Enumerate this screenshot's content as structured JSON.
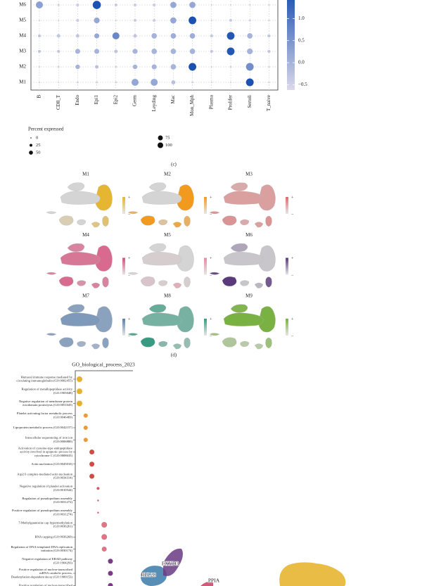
{
  "dotplot": {
    "rows": [
      "M6",
      "M5",
      "M4",
      "M3",
      "M2",
      "M1"
    ],
    "columns": [
      "B",
      "CD8_T",
      "Endo",
      "Epi1",
      "Epi2",
      "Germ",
      "Leyding",
      "Mac",
      "Mon_Mph",
      "Plasma",
      "Prolifer",
      "Sertoli",
      "T_naive"
    ],
    "percent": [
      [
        60,
        5,
        10,
        80,
        8,
        10,
        10,
        45,
        45,
        3,
        3,
        3,
        3
      ],
      [
        3,
        3,
        10,
        40,
        3,
        10,
        10,
        45,
        70,
        3,
        10,
        5,
        3
      ],
      [
        10,
        15,
        15,
        30,
        60,
        15,
        35,
        35,
        35,
        10,
        70,
        35,
        10
      ],
      [
        10,
        10,
        30,
        30,
        15,
        30,
        35,
        35,
        35,
        10,
        70,
        40,
        10
      ],
      [
        3,
        5,
        25,
        15,
        5,
        25,
        30,
        35,
        70,
        3,
        5,
        70,
        3
      ],
      [
        3,
        3,
        5,
        5,
        5,
        60,
        60,
        20,
        5,
        3,
        3,
        70,
        3
      ]
    ],
    "average": [
      [
        0.3,
        -0.4,
        -0.4,
        1.6,
        -0.3,
        -0.4,
        -0.4,
        0.2,
        0.2,
        -0.5,
        -0.5,
        -0.5,
        -0.5
      ],
      [
        -0.5,
        -0.5,
        -0.4,
        0.2,
        -0.5,
        -0.4,
        -0.4,
        0.2,
        1.6,
        -0.5,
        -0.4,
        -0.5,
        -0.5
      ],
      [
        -0.3,
        -0.3,
        -0.3,
        0.2,
        0.7,
        -0.3,
        0,
        0.1,
        0.1,
        -0.3,
        1.5,
        0,
        -0.3
      ],
      [
        -0.3,
        -0.3,
        0,
        0,
        -0.3,
        0,
        0,
        0,
        0,
        -0.3,
        1.5,
        0,
        -0.3
      ],
      [
        -0.5,
        -0.5,
        0,
        -0.2,
        -0.5,
        0,
        0,
        0,
        1.6,
        -0.5,
        -0.5,
        0.6,
        -0.5
      ],
      [
        -0.5,
        -0.5,
        -0.5,
        -0.5,
        -0.5,
        0.2,
        0.2,
        -0.2,
        -0.5,
        -0.5,
        -0.5,
        1.6,
        -0.5
      ]
    ],
    "color_low": "#dcd9ea",
    "color_high": "#2b5cb6",
    "colorbar_range": [
      -0.62,
      1.42
    ],
    "colorbar_ticks": [
      {
        "value": 1,
        "label": "1.0"
      },
      0.5,
      {
        "value": 0,
        "label": "0.0"
      },
      {
        "value": -0.5,
        "label": "−0.5"
      }
    ],
    "size_legend": {
      "title": "Percent expressed",
      "values": [
        0,
        25,
        50,
        75,
        100
      ]
    }
  },
  "panel_c": {
    "label": "(c)",
    "modules": [
      {
        "name": "M1",
        "color": "#e6b531"
      },
      {
        "name": "M2",
        "color": "#f29a1e"
      },
      {
        "name": "M3",
        "color": "#e06a6a"
      },
      {
        "name": "M4",
        "color": "#d84f7c"
      },
      {
        "name": "M5",
        "color": "#e98aa0"
      },
      {
        "name": "M6",
        "color": "#5b3a7c"
      },
      {
        "name": "M7",
        "color": "#5a80b0"
      },
      {
        "name": "M8",
        "color": "#389a80"
      },
      {
        "name": "M9",
        "color": "#79b243"
      }
    ],
    "scale_labels": [
      "+",
      "−"
    ]
  },
  "panel_d": {
    "label": "(d)",
    "title": "GO_biological_process_2023",
    "terms": [
      {
        "lines": [
          "Humoral immune response mediated by",
          "circulating immunoglobulin (GO:0002455)"
        ],
        "size": 4,
        "color": "#e8b030"
      },
      {
        "lines": [
          "Regulation of metallopeptidase activity",
          "(GO:1905048)"
        ],
        "size": 4,
        "color": "#e8b030"
      },
      {
        "lines": [
          "Negative regulation of membrane protein",
          "ectodomain proteolysis (GO:0051045)"
        ],
        "size": 4,
        "color": "#e8b030"
      },
      {
        "lines": [
          "Platelet activating factor metabolic process",
          "(GO:0046469)"
        ],
        "size": 3,
        "color": "#eb9a35"
      },
      {
        "lines": [
          "Lipoprotein metabolic process (GO:0042157)"
        ],
        "size": 3,
        "color": "#eb9a35"
      },
      {
        "lines": [
          "Intracellular sequestering of iron ion",
          "(GO:0006880)"
        ],
        "size": 3,
        "color": "#eb9a35"
      },
      {
        "lines": [
          "Activation of cysteine-type endopeptidase",
          "activity involved in apoptotic process by",
          "cytochrome C (GO:0008635)"
        ],
        "size": 3.5,
        "color": "#cf4d45"
      },
      {
        "lines": [
          "Actin nucleation (GO:0045010)"
        ],
        "size": 3.5,
        "color": "#cf4d45"
      },
      {
        "lines": [
          "Arp2/3 complex-mediated actin nucleation",
          "(GO:0034314)"
        ],
        "size": 3.5,
        "color": "#cf4d45"
      },
      {
        "lines": [
          "Negative regulation of platelet activation",
          "(GO:0010544)"
        ],
        "size": 2,
        "color": "#d9576a"
      },
      {
        "lines": [
          "Regulation of pseudopodium assembly",
          "(GO:0031272)"
        ],
        "size": 1.2,
        "color": "#d9576a"
      },
      {
        "lines": [
          "Positive regulation of pseudopodium assembly",
          "(GO:0031274)"
        ],
        "size": 1.2,
        "color": "#d9576a"
      },
      {
        "lines": [
          "7-Methylguanosine cap hypermethylation",
          "(GO:0036261)"
        ],
        "size": 4,
        "color": "#dc7585"
      },
      {
        "lines": [
          "RNA capping (GO:0036260)"
        ],
        "size": 4,
        "color": "#dc7585"
      },
      {
        "lines": [
          "Regulation of DNA-templated DNA replication",
          "initiation (GO:0030174)"
        ],
        "size": 3.5,
        "color": "#dc7585"
      },
      {
        "lines": [
          "Negative regulation of ERAD pathway",
          "(GO:1904293)"
        ],
        "size": 3.5,
        "color": "#7b3a85"
      },
      {
        "lines": [
          "Positive regulation of nuclear-transcribed",
          "mRNA catabolic process,",
          "Deadenylation-dependent decay (GO:1900153)"
        ],
        "size": 3.5,
        "color": "#7b3a85"
      },
      {
        "lines": [
          "Positive regulation of nuclear-transcribed"
        ],
        "size": 3.5,
        "color": "#7b3a85"
      }
    ]
  },
  "panel_e": {
    "genes": [
      "FXYD3",
      "RPL28",
      "PPIA"
    ]
  }
}
